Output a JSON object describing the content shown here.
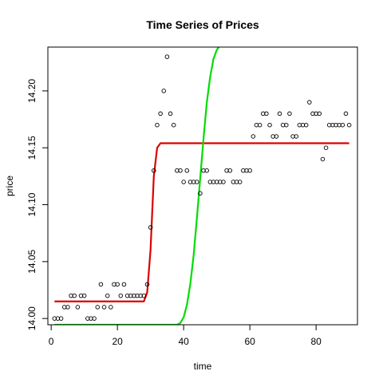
{
  "chart_data": {
    "type": "scatter",
    "title": "Time Series of Prices",
    "xlabel": "time",
    "ylabel": "price",
    "xlim": [
      -1,
      92.5
    ],
    "ylim": [
      13.9945,
      14.2385
    ],
    "x_ticks": [
      0,
      20,
      40,
      60,
      80
    ],
    "y_ticks": [
      14.0,
      14.05,
      14.1,
      14.15,
      14.2
    ],
    "y_tick_labels": [
      "14.00",
      "14.05",
      "14.10",
      "14.15",
      "14.20"
    ],
    "grid": false,
    "legend": "none",
    "points": {
      "color": "#000000",
      "x": [
        1,
        2,
        3,
        4,
        5,
        6,
        7,
        8,
        9,
        10,
        11,
        12,
        13,
        14,
        15,
        16,
        17,
        18,
        19,
        20,
        21,
        22,
        23,
        24,
        25,
        26,
        27,
        28,
        29,
        30,
        31,
        32,
        33,
        34,
        35,
        36,
        37,
        38,
        39,
        40,
        41,
        42,
        43,
        44,
        45,
        46,
        47,
        48,
        49,
        50,
        51,
        52,
        53,
        54,
        55,
        56,
        57,
        58,
        59,
        60,
        61,
        62,
        63,
        64,
        65,
        66,
        67,
        68,
        69,
        70,
        71,
        72,
        73,
        74,
        75,
        76,
        77,
        78,
        79,
        80,
        81,
        82,
        83,
        84,
        85,
        86,
        87,
        88,
        89,
        90
      ],
      "y": [
        14.0,
        14.0,
        14.0,
        14.01,
        14.01,
        14.02,
        14.02,
        14.01,
        14.02,
        14.02,
        14.0,
        14.0,
        14.0,
        14.01,
        14.03,
        14.01,
        14.02,
        14.01,
        14.03,
        14.03,
        14.02,
        14.03,
        14.02,
        14.02,
        14.02,
        14.02,
        14.02,
        14.02,
        14.03,
        14.08,
        14.13,
        14.17,
        14.18,
        14.2,
        14.23,
        14.18,
        14.17,
        14.13,
        14.13,
        14.12,
        14.13,
        14.12,
        14.12,
        14.12,
        14.11,
        14.13,
        14.13,
        14.12,
        14.12,
        14.12,
        14.12,
        14.12,
        14.13,
        14.13,
        14.12,
        14.12,
        14.12,
        14.13,
        14.13,
        14.13,
        14.16,
        14.17,
        14.17,
        14.18,
        14.18,
        14.17,
        14.16,
        14.16,
        14.18,
        14.17,
        14.17,
        14.18,
        14.16,
        14.16,
        14.17,
        14.17,
        14.17,
        14.19,
        14.18,
        14.18,
        14.18,
        14.14,
        14.15,
        14.17,
        14.17,
        14.17,
        14.17,
        14.17,
        14.18,
        14.17
      ]
    },
    "lines": [
      {
        "color": "#dd0000",
        "x": [
          1,
          27,
          28,
          29,
          30,
          31,
          32,
          33,
          34,
          90
        ],
        "y": [
          14.015,
          14.015,
          14.015,
          14.023,
          14.06,
          14.125,
          14.15,
          14.154,
          14.154,
          14.154
        ]
      },
      {
        "color": "#00dd00",
        "x": [
          1,
          38,
          39,
          40,
          41,
          42,
          43,
          44,
          45,
          46,
          47,
          48,
          49,
          50,
          51,
          52
        ],
        "y": [
          13.9945,
          13.9945,
          13.996,
          14.001,
          14.012,
          14.03,
          14.055,
          14.088,
          14.123,
          14.158,
          14.19,
          14.212,
          14.228,
          14.236,
          14.24,
          14.245
        ]
      }
    ]
  }
}
